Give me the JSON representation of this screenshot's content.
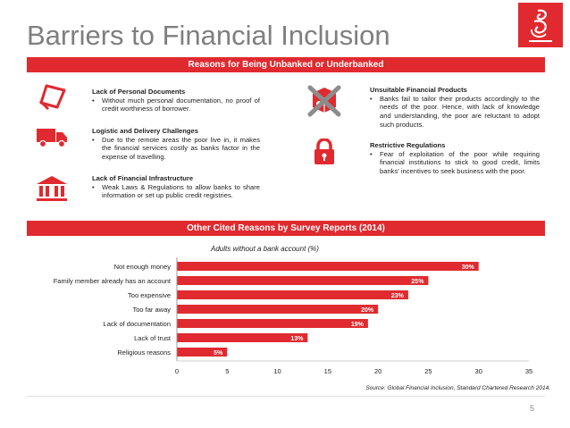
{
  "slide": {
    "title": "Barriers to Financial Inclusion",
    "page_number": "5",
    "accent_color": "#e02a2f"
  },
  "section1": {
    "header": "Reasons for Being Unbanked or Underbanked",
    "left": [
      {
        "icon": "document-icon",
        "heading": "Lack of Personal Documents",
        "bullet": "Without much personal documentation, no proof of credit worthiness of borrower."
      },
      {
        "icon": "truck-icon",
        "heading": "Logistic and Delivery Challenges",
        "bullet": "Due to the remote areas the poor live in, it makes the financial services costly as banks factor in the expense of travelling."
      },
      {
        "icon": "bank-icon",
        "heading": "Lack of Financial Infrastructure",
        "bullet": "Weak Laws & Regulations to allow banks to share information or set up public credit registries."
      }
    ],
    "right": [
      {
        "icon": "crossed-product-icon",
        "heading": "Unsuitable Financial Products",
        "bullet": "Banks fail to tailor their products accordingly to the needs of the poor. Hence, with lack of knowledge and understanding, the poor are reluctant to adopt such products."
      },
      {
        "icon": "padlock-icon",
        "heading": "Restrictive Regulations",
        "bullet": "Fear of exploitation of the poor while requiring financial institutions to stick to good credit, limits banks' incentives to seek business with the poor."
      }
    ]
  },
  "section2": {
    "header": "Other Cited Reasons by Survey Reports (2014)",
    "source": "Source: Global Financial Inclusion, Standard Chartered Research 2014."
  },
  "chart_data": {
    "type": "bar",
    "orientation": "horizontal",
    "title": "Adults without a bank account (%)",
    "categories": [
      "Not enough money",
      "Family member already has an account",
      "Too expensive",
      "Too far away",
      "Lack of documentation",
      "Lack of trust",
      "Religious reasons"
    ],
    "values": [
      30,
      25,
      23,
      20,
      19,
      13,
      5
    ],
    "data_labels": [
      "30%",
      "25%",
      "23%",
      "20%",
      "19%",
      "13%",
      "5%"
    ],
    "xlim": [
      0,
      35
    ],
    "xticks": [
      "0",
      "5",
      "10",
      "15",
      "20",
      "25",
      "30",
      "35"
    ],
    "grid": false,
    "bar_color": "#e02a2f"
  }
}
